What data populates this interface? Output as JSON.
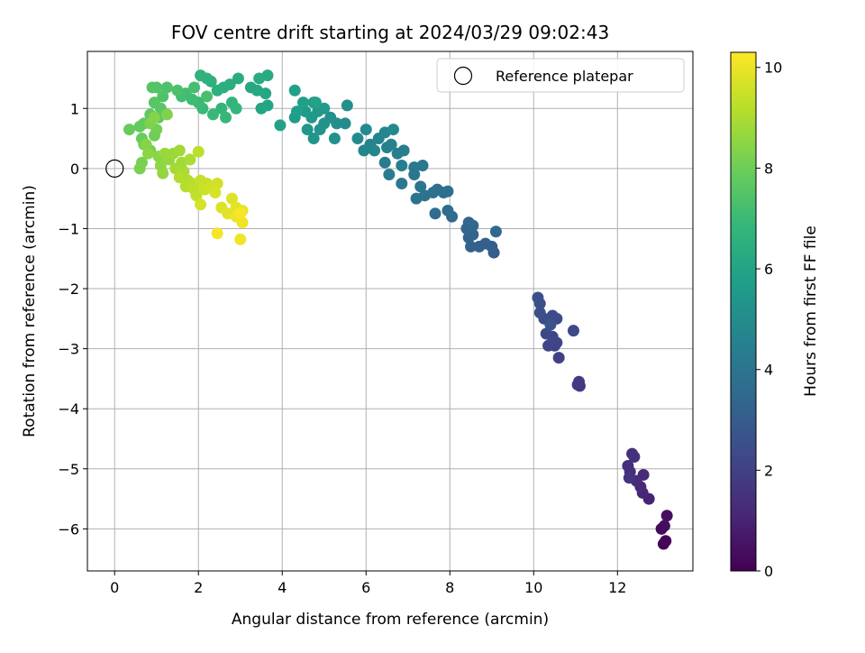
{
  "chart_data": {
    "type": "scatter",
    "title": "FOV centre drift starting at 2024/03/29 09:02:43",
    "xlabel": "Angular distance from reference (arcmin)",
    "ylabel": "Rotation from reference (arcmin)",
    "xlim": [
      -0.65,
      13.8
    ],
    "ylim": [
      -6.7,
      1.95
    ],
    "xticks": [
      0,
      2,
      4,
      6,
      8,
      10,
      12
    ],
    "xtick_labels": [
      "0",
      "2",
      "4",
      "6",
      "8",
      "10",
      "12"
    ],
    "yticks": [
      1,
      0,
      -1,
      -2,
      -3,
      -4,
      -5,
      -6
    ],
    "ytick_labels": [
      "1",
      "0",
      "−1",
      "−2",
      "−3",
      "−4",
      "−5",
      "−6"
    ],
    "grid": true,
    "legend": {
      "placement": "top-right",
      "entries": [
        "Reference platepar"
      ]
    },
    "colorbar": {
      "label": "Hours from first FF file",
      "min": 0,
      "max": 10.3,
      "ticks": [
        0,
        2,
        4,
        6,
        8,
        10
      ],
      "tick_labels": [
        "0",
        "2",
        "4",
        "6",
        "8",
        "10"
      ],
      "colormap": "viridis",
      "stops": [
        "#440154",
        "#482878",
        "#3e4989",
        "#31688e",
        "#26828e",
        "#1f9e89",
        "#35b779",
        "#6ece58",
        "#b5de2b",
        "#fde725"
      ]
    },
    "reference": {
      "name": "Reference platepar",
      "x": 0,
      "y": 0
    },
    "series": [
      {
        "color_by": "hours",
        "points": [
          [
            13.1,
            -6.25,
            0.1
          ],
          [
            13.15,
            -6.2,
            0.15
          ],
          [
            13.05,
            -6.0,
            0.3
          ],
          [
            13.12,
            -5.95,
            0.35
          ],
          [
            13.18,
            -5.78,
            0.45
          ],
          [
            12.75,
            -5.5,
            1.0
          ],
          [
            12.6,
            -5.4,
            1.1
          ],
          [
            12.55,
            -5.3,
            1.15
          ],
          [
            12.62,
            -5.1,
            1.2
          ],
          [
            12.45,
            -5.2,
            1.3
          ],
          [
            12.3,
            -5.05,
            1.35
          ],
          [
            12.25,
            -4.95,
            1.4
          ],
          [
            12.35,
            -4.75,
            1.45
          ],
          [
            12.4,
            -4.8,
            1.5
          ],
          [
            12.28,
            -5.15,
            1.55
          ],
          [
            11.1,
            -3.62,
            1.7
          ],
          [
            11.05,
            -3.6,
            1.75
          ],
          [
            11.08,
            -3.55,
            1.8
          ],
          [
            10.6,
            -3.15,
            2.0
          ],
          [
            10.5,
            -2.95,
            2.05
          ],
          [
            10.35,
            -2.95,
            2.1
          ],
          [
            10.55,
            -2.9,
            2.15
          ],
          [
            10.45,
            -2.8,
            2.2
          ],
          [
            10.3,
            -2.75,
            2.25
          ],
          [
            10.95,
            -2.7,
            2.3
          ],
          [
            10.55,
            -2.5,
            2.35
          ],
          [
            10.45,
            -2.45,
            2.4
          ],
          [
            10.25,
            -2.5,
            2.45
          ],
          [
            10.15,
            -2.4,
            2.5
          ],
          [
            10.1,
            -2.15,
            2.55
          ],
          [
            10.15,
            -2.25,
            2.6
          ],
          [
            10.4,
            -2.6,
            2.65
          ],
          [
            9.05,
            -1.4,
            3.0
          ],
          [
            9.0,
            -1.3,
            3.05
          ],
          [
            8.85,
            -1.25,
            3.1
          ],
          [
            8.7,
            -1.3,
            3.15
          ],
          [
            8.5,
            -1.3,
            3.2
          ],
          [
            8.45,
            -1.15,
            3.25
          ],
          [
            8.55,
            -1.1,
            3.3
          ],
          [
            8.4,
            -1.0,
            3.35
          ],
          [
            8.45,
            -0.9,
            3.4
          ],
          [
            8.55,
            -0.95,
            3.45
          ],
          [
            9.1,
            -1.05,
            3.5
          ],
          [
            8.05,
            -0.8,
            3.55
          ],
          [
            7.95,
            -0.7,
            3.6
          ],
          [
            7.65,
            -0.75,
            3.65
          ],
          [
            7.85,
            -0.4,
            3.7
          ],
          [
            7.7,
            -0.35,
            3.75
          ],
          [
            7.95,
            -0.38,
            3.8
          ],
          [
            7.6,
            -0.4,
            3.85
          ],
          [
            7.4,
            -0.45,
            3.9
          ],
          [
            7.2,
            -0.5,
            3.95
          ],
          [
            7.3,
            -0.3,
            4.0
          ],
          [
            7.15,
            -0.1,
            4.05
          ],
          [
            7.35,
            0.05,
            4.1
          ],
          [
            7.15,
            0.02,
            4.15
          ],
          [
            6.85,
            -0.25,
            4.2
          ],
          [
            6.55,
            -0.1,
            4.25
          ],
          [
            6.45,
            0.1,
            4.3
          ],
          [
            6.85,
            0.05,
            4.35
          ],
          [
            6.9,
            0.3,
            4.4
          ],
          [
            6.75,
            0.25,
            4.45
          ],
          [
            6.6,
            0.4,
            4.5
          ],
          [
            6.5,
            0.35,
            4.55
          ],
          [
            6.3,
            0.5,
            4.6
          ],
          [
            6.1,
            0.4,
            4.65
          ],
          [
            5.95,
            0.3,
            4.7
          ],
          [
            6.2,
            0.3,
            4.75
          ],
          [
            6.45,
            0.6,
            4.8
          ],
          [
            6.65,
            0.65,
            4.85
          ],
          [
            6.0,
            0.65,
            4.9
          ],
          [
            5.8,
            0.5,
            4.95
          ],
          [
            5.5,
            0.75,
            5.0
          ],
          [
            5.3,
            0.75,
            5.05
          ],
          [
            5.55,
            1.05,
            5.1
          ],
          [
            5.15,
            0.85,
            5.15
          ],
          [
            5.25,
            0.5,
            5.2
          ],
          [
            5.0,
            0.75,
            5.25
          ],
          [
            4.9,
            0.65,
            5.3
          ],
          [
            4.75,
            0.5,
            5.35
          ],
          [
            4.6,
            0.65,
            5.4
          ],
          [
            4.7,
            0.85,
            5.45
          ],
          [
            4.85,
            0.95,
            5.5
          ],
          [
            5.0,
            1.0,
            5.55
          ],
          [
            4.75,
            1.1,
            5.6
          ],
          [
            4.55,
            0.95,
            5.65
          ],
          [
            4.3,
            0.85,
            5.7
          ],
          [
            4.35,
            0.95,
            5.75
          ],
          [
            4.5,
            1.1,
            5.8
          ],
          [
            4.3,
            1.3,
            5.85
          ],
          [
            4.8,
            1.1,
            5.9
          ],
          [
            3.95,
            0.72,
            5.95
          ],
          [
            3.65,
            1.05,
            6.0
          ],
          [
            3.5,
            1.0,
            6.05
          ],
          [
            3.6,
            1.25,
            6.1
          ],
          [
            3.4,
            1.3,
            6.15
          ],
          [
            3.25,
            1.35,
            6.2
          ],
          [
            3.65,
            1.55,
            6.25
          ],
          [
            3.45,
            1.5,
            6.3
          ],
          [
            2.95,
            1.5,
            6.35
          ],
          [
            2.75,
            1.4,
            6.4
          ],
          [
            2.6,
            1.35,
            6.45
          ],
          [
            2.45,
            1.3,
            6.5
          ],
          [
            2.3,
            1.45,
            6.55
          ],
          [
            2.2,
            1.5,
            6.6
          ],
          [
            2.05,
            1.55,
            6.65
          ],
          [
            2.8,
            1.1,
            6.7
          ],
          [
            2.55,
            1.0,
            6.75
          ],
          [
            2.9,
            1.0,
            6.8
          ],
          [
            2.65,
            0.85,
            6.85
          ],
          [
            2.35,
            0.9,
            6.9
          ],
          [
            2.1,
            1.0,
            6.95
          ],
          [
            2.0,
            1.1,
            7.0
          ],
          [
            1.85,
            1.15,
            7.05
          ],
          [
            1.7,
            1.25,
            7.1
          ],
          [
            1.6,
            1.2,
            7.15
          ],
          [
            1.9,
            1.35,
            7.2
          ],
          [
            2.2,
            1.2,
            7.25
          ],
          [
            1.5,
            1.3,
            7.3
          ],
          [
            1.25,
            1.35,
            7.35
          ],
          [
            1.15,
            1.2,
            7.4
          ],
          [
            1.0,
            1.35,
            7.45
          ],
          [
            0.9,
            1.35,
            7.5
          ],
          [
            0.95,
            1.1,
            7.55
          ],
          [
            1.1,
            1.0,
            7.6
          ],
          [
            1.05,
            0.85,
            7.65
          ],
          [
            0.85,
            0.9,
            7.7
          ],
          [
            0.7,
            0.75,
            7.75
          ],
          [
            0.6,
            0.7,
            7.8
          ],
          [
            0.35,
            0.65,
            7.85
          ],
          [
            0.65,
            0.5,
            7.9
          ],
          [
            0.7,
            0.4,
            7.95
          ],
          [
            0.95,
            0.55,
            8.0
          ],
          [
            0.85,
            0.3,
            8.05
          ],
          [
            1.0,
            0.65,
            8.1
          ],
          [
            0.65,
            0.1,
            8.15
          ],
          [
            0.6,
            0.0,
            8.2
          ],
          [
            0.85,
            0.75,
            8.25
          ],
          [
            1.25,
            0.9,
            8.3
          ],
          [
            0.95,
            0.85,
            8.35
          ],
          [
            0.75,
            0.4,
            8.4
          ],
          [
            1.05,
            0.2,
            8.45
          ],
          [
            0.8,
            0.25,
            8.5
          ],
          [
            1.1,
            0.05,
            8.55
          ],
          [
            1.15,
            -0.08,
            8.6
          ],
          [
            1.3,
            0.15,
            8.65
          ],
          [
            1.2,
            0.25,
            8.7
          ],
          [
            1.4,
            0.25,
            8.75
          ],
          [
            1.55,
            0.3,
            8.8
          ],
          [
            1.6,
            0.1,
            8.85
          ],
          [
            1.45,
            0.0,
            8.9
          ],
          [
            1.65,
            -0.05,
            8.95
          ],
          [
            1.8,
            0.15,
            9.0
          ],
          [
            1.75,
            -0.2,
            9.05
          ],
          [
            1.55,
            -0.15,
            9.1
          ],
          [
            1.7,
            -0.3,
            9.15
          ],
          [
            1.85,
            -0.25,
            9.2
          ],
          [
            2.0,
            0.28,
            9.25
          ],
          [
            1.9,
            -0.35,
            9.3
          ],
          [
            1.95,
            -0.45,
            9.35
          ],
          [
            2.05,
            -0.2,
            9.4
          ],
          [
            2.2,
            -0.25,
            9.45
          ],
          [
            2.15,
            -0.35,
            9.5
          ],
          [
            2.3,
            -0.3,
            9.55
          ],
          [
            2.45,
            -0.25,
            9.6
          ],
          [
            2.05,
            -0.6,
            9.65
          ],
          [
            2.4,
            -0.4,
            9.7
          ],
          [
            2.55,
            -0.65,
            9.75
          ],
          [
            2.8,
            -0.5,
            9.8
          ],
          [
            2.7,
            -0.75,
            9.85
          ],
          [
            2.9,
            -0.65,
            9.9
          ],
          [
            3.05,
            -0.7,
            9.95
          ],
          [
            2.9,
            -0.8,
            10.0
          ],
          [
            3.05,
            -0.9,
            10.05
          ],
          [
            3.0,
            -1.18,
            10.1
          ],
          [
            2.45,
            -1.08,
            10.15
          ],
          [
            3.0,
            -0.75,
            10.2
          ]
        ]
      }
    ]
  }
}
